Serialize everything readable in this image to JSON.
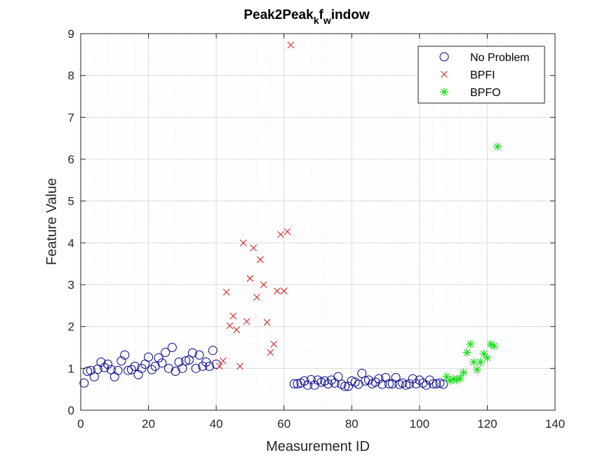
{
  "chart_data": {
    "type": "scatter",
    "title": {
      "main": "Peak2Peak",
      "sub1": "k",
      "mid": "f",
      "sub2": "w",
      "tail": "indow"
    },
    "xlabel": "Measurement ID",
    "ylabel": "Feature Value",
    "xlim": [
      0,
      140
    ],
    "ylim": [
      0,
      9
    ],
    "xticks": [
      "0",
      "20",
      "40",
      "60",
      "80",
      "100",
      "120",
      "140"
    ],
    "yticks": [
      "0",
      "1",
      "2",
      "3",
      "4",
      "5",
      "6",
      "7",
      "8",
      "9"
    ],
    "grid": "major-and-minor-dotted",
    "legend": {
      "position": "top-right",
      "entries": [
        "No Problem",
        "BPFI",
        "BPFO"
      ]
    },
    "series": [
      {
        "name": "No Problem",
        "marker": "circle",
        "color": "#00008b",
        "x": [
          1,
          2,
          3,
          4,
          5,
          6,
          7,
          8,
          9,
          10,
          11,
          12,
          13,
          14,
          15,
          16,
          17,
          18,
          19,
          20,
          21,
          22,
          23,
          24,
          25,
          26,
          27,
          28,
          29,
          30,
          31,
          32,
          33,
          34,
          35,
          36,
          37,
          38,
          39,
          40,
          63,
          64,
          65,
          66,
          67,
          68,
          69,
          70,
          71,
          72,
          73,
          74,
          75,
          76,
          77,
          78,
          79,
          80,
          81,
          82,
          83,
          84,
          85,
          86,
          87,
          88,
          89,
          90,
          91,
          92,
          93,
          94,
          95,
          96,
          97,
          98,
          99,
          100,
          101,
          102,
          103,
          104,
          105,
          106,
          107
        ],
        "y": [
          0.65,
          0.93,
          0.95,
          0.8,
          0.98,
          1.15,
          1.02,
          1.1,
          0.97,
          0.8,
          0.95,
          1.18,
          1.32,
          0.95,
          0.97,
          1.05,
          0.85,
          1.0,
          1.1,
          1.27,
          0.97,
          1.05,
          1.25,
          1.13,
          1.38,
          1.0,
          1.5,
          0.93,
          1.15,
          1.0,
          1.18,
          1.2,
          1.37,
          1.0,
          1.32,
          1.05,
          1.15,
          1.05,
          1.43,
          1.1,
          0.63,
          0.63,
          0.65,
          0.7,
          0.6,
          0.73,
          0.6,
          0.72,
          0.67,
          0.7,
          0.63,
          0.72,
          0.65,
          0.8,
          0.62,
          0.57,
          0.57,
          0.7,
          0.67,
          0.62,
          0.88,
          0.7,
          0.72,
          0.63,
          0.67,
          0.75,
          0.62,
          0.78,
          0.63,
          0.63,
          0.78,
          0.62,
          0.65,
          0.6,
          0.63,
          0.75,
          0.63,
          0.72,
          0.65,
          0.6,
          0.72,
          0.63,
          0.63,
          0.65,
          0.62
        ]
      },
      {
        "name": "BPFI",
        "marker": "x",
        "color": "#d62728",
        "x": [
          41,
          42,
          43,
          44,
          45,
          46,
          47,
          48,
          49,
          50,
          51,
          52,
          53,
          54,
          55,
          56,
          57,
          58,
          59,
          60,
          61,
          62
        ],
        "y": [
          1.05,
          1.18,
          2.82,
          2.02,
          2.25,
          1.92,
          1.05,
          4.0,
          2.12,
          3.15,
          3.88,
          2.7,
          3.6,
          3.0,
          2.1,
          1.38,
          1.58,
          2.85,
          4.2,
          2.85,
          4.27,
          8.73
        ]
      },
      {
        "name": "BPFO",
        "marker": "asterisk",
        "color": "#22dd22",
        "x": [
          108,
          109,
          110,
          111,
          112,
          113,
          114,
          115,
          116,
          117,
          118,
          119,
          120,
          121,
          122,
          123
        ],
        "y": [
          0.8,
          0.7,
          0.75,
          0.72,
          0.77,
          0.9,
          1.38,
          1.58,
          1.15,
          0.97,
          1.15,
          1.35,
          1.25,
          1.58,
          1.53,
          6.3
        ]
      }
    ]
  }
}
